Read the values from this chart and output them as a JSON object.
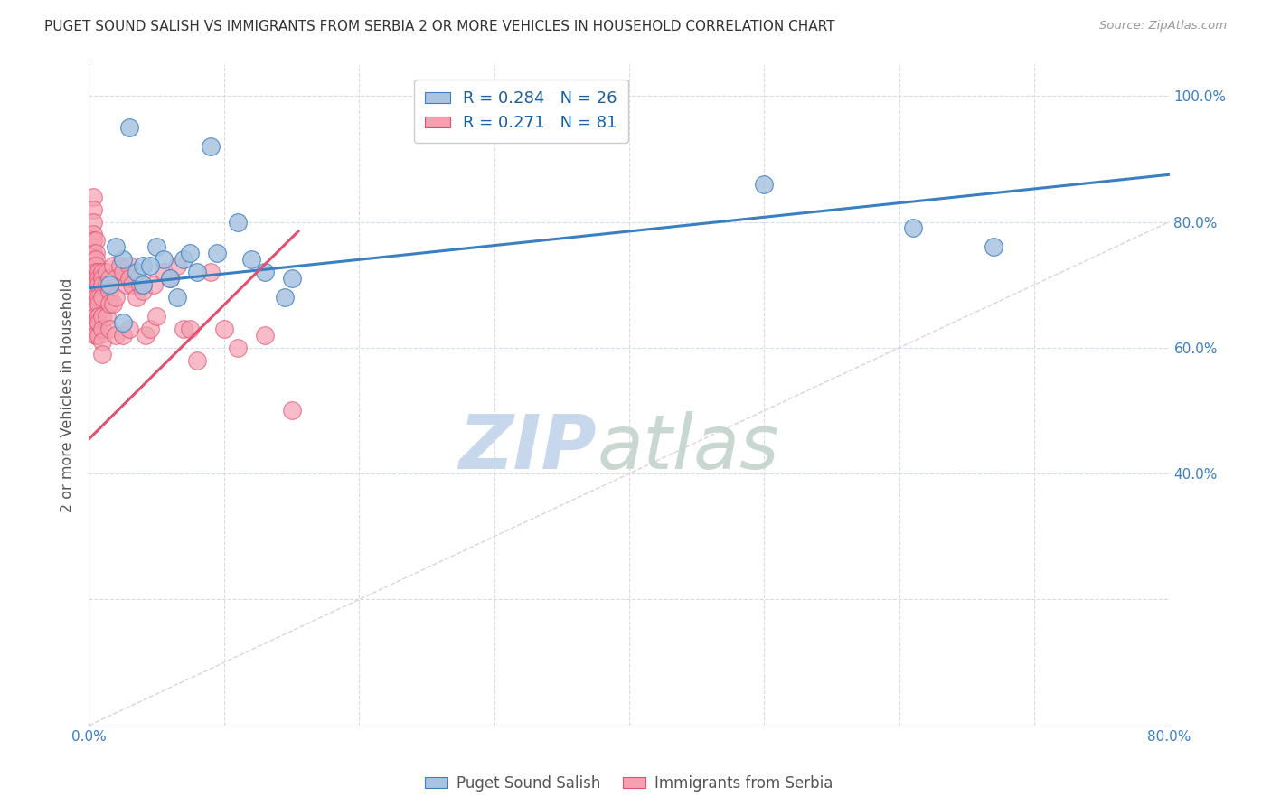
{
  "title": "PUGET SOUND SALISH VS IMMIGRANTS FROM SERBIA 2 OR MORE VEHICLES IN HOUSEHOLD CORRELATION CHART",
  "source": "Source: ZipAtlas.com",
  "ylabel": "2 or more Vehicles in Household",
  "xlim": [
    0.0,
    0.8
  ],
  "ylim": [
    0.0,
    1.05
  ],
  "xticks": [
    0.0,
    0.1,
    0.2,
    0.3,
    0.4,
    0.5,
    0.6,
    0.7,
    0.8
  ],
  "xticklabels": [
    "0.0%",
    "",
    "",
    "",
    "",
    "",
    "",
    "",
    "80.0%"
  ],
  "yticks": [
    0.0,
    0.2,
    0.4,
    0.6,
    0.8,
    1.0
  ],
  "ytick_labels_right": [
    "",
    "",
    "40.0%",
    "60.0%",
    "80.0%",
    "100.0%"
  ],
  "blue_R": 0.284,
  "blue_N": 26,
  "pink_R": 0.271,
  "pink_N": 81,
  "blue_color": "#a8c4e0",
  "pink_color": "#f4a0b0",
  "blue_line_color": "#3a7fc1",
  "pink_line_color": "#e05070",
  "diagonal_color": "#d0c8d0",
  "watermark_zip": "ZIP",
  "watermark_atlas": "atlas",
  "watermark_color_zip": "#c8d8ec",
  "watermark_color_atlas": "#c8d8d0",
  "blue_scatter_x": [
    0.035,
    0.05,
    0.11,
    0.055,
    0.025,
    0.04,
    0.02,
    0.06,
    0.07,
    0.08,
    0.13,
    0.15,
    0.095,
    0.04,
    0.065,
    0.5,
    0.61,
    0.67,
    0.03,
    0.09,
    0.015,
    0.045,
    0.075,
    0.12,
    0.145,
    0.025
  ],
  "blue_scatter_y": [
    0.72,
    0.76,
    0.8,
    0.74,
    0.74,
    0.73,
    0.76,
    0.71,
    0.74,
    0.72,
    0.72,
    0.71,
    0.75,
    0.7,
    0.68,
    0.86,
    0.79,
    0.76,
    0.95,
    0.92,
    0.7,
    0.73,
    0.75,
    0.74,
    0.68,
    0.64
  ],
  "pink_scatter_x": [
    0.003,
    0.003,
    0.003,
    0.003,
    0.003,
    0.003,
    0.003,
    0.003,
    0.003,
    0.005,
    0.005,
    0.005,
    0.005,
    0.005,
    0.005,
    0.005,
    0.005,
    0.005,
    0.005,
    0.005,
    0.005,
    0.005,
    0.005,
    0.005,
    0.005,
    0.005,
    0.005,
    0.007,
    0.007,
    0.007,
    0.007,
    0.007,
    0.007,
    0.007,
    0.007,
    0.01,
    0.01,
    0.01,
    0.01,
    0.01,
    0.01,
    0.01,
    0.01,
    0.013,
    0.013,
    0.013,
    0.015,
    0.015,
    0.015,
    0.015,
    0.018,
    0.018,
    0.02,
    0.02,
    0.02,
    0.023,
    0.025,
    0.025,
    0.028,
    0.03,
    0.03,
    0.03,
    0.032,
    0.035,
    0.038,
    0.04,
    0.042,
    0.045,
    0.048,
    0.05,
    0.055,
    0.06,
    0.065,
    0.07,
    0.075,
    0.08,
    0.09,
    0.1,
    0.11,
    0.13,
    0.15
  ],
  "pink_scatter_y": [
    0.84,
    0.82,
    0.8,
    0.78,
    0.77,
    0.75,
    0.74,
    0.73,
    0.72,
    0.77,
    0.75,
    0.74,
    0.73,
    0.72,
    0.71,
    0.7,
    0.69,
    0.68,
    0.67,
    0.66,
    0.65,
    0.64,
    0.63,
    0.62,
    0.64,
    0.63,
    0.62,
    0.72,
    0.71,
    0.7,
    0.68,
    0.67,
    0.65,
    0.64,
    0.62,
    0.72,
    0.71,
    0.7,
    0.68,
    0.65,
    0.63,
    0.61,
    0.59,
    0.72,
    0.7,
    0.65,
    0.71,
    0.69,
    0.67,
    0.63,
    0.73,
    0.67,
    0.71,
    0.68,
    0.62,
    0.73,
    0.72,
    0.62,
    0.7,
    0.73,
    0.71,
    0.63,
    0.7,
    0.68,
    0.7,
    0.69,
    0.62,
    0.63,
    0.7,
    0.65,
    0.72,
    0.71,
    0.73,
    0.63,
    0.63,
    0.58,
    0.72,
    0.63,
    0.6,
    0.62,
    0.5
  ],
  "blue_line_x0": 0.0,
  "blue_line_y0": 0.695,
  "blue_line_x1": 0.8,
  "blue_line_y1": 0.875,
  "pink_line_x0": 0.0,
  "pink_line_y0": 0.455,
  "pink_line_x1": 0.155,
  "pink_line_y1": 0.785
}
